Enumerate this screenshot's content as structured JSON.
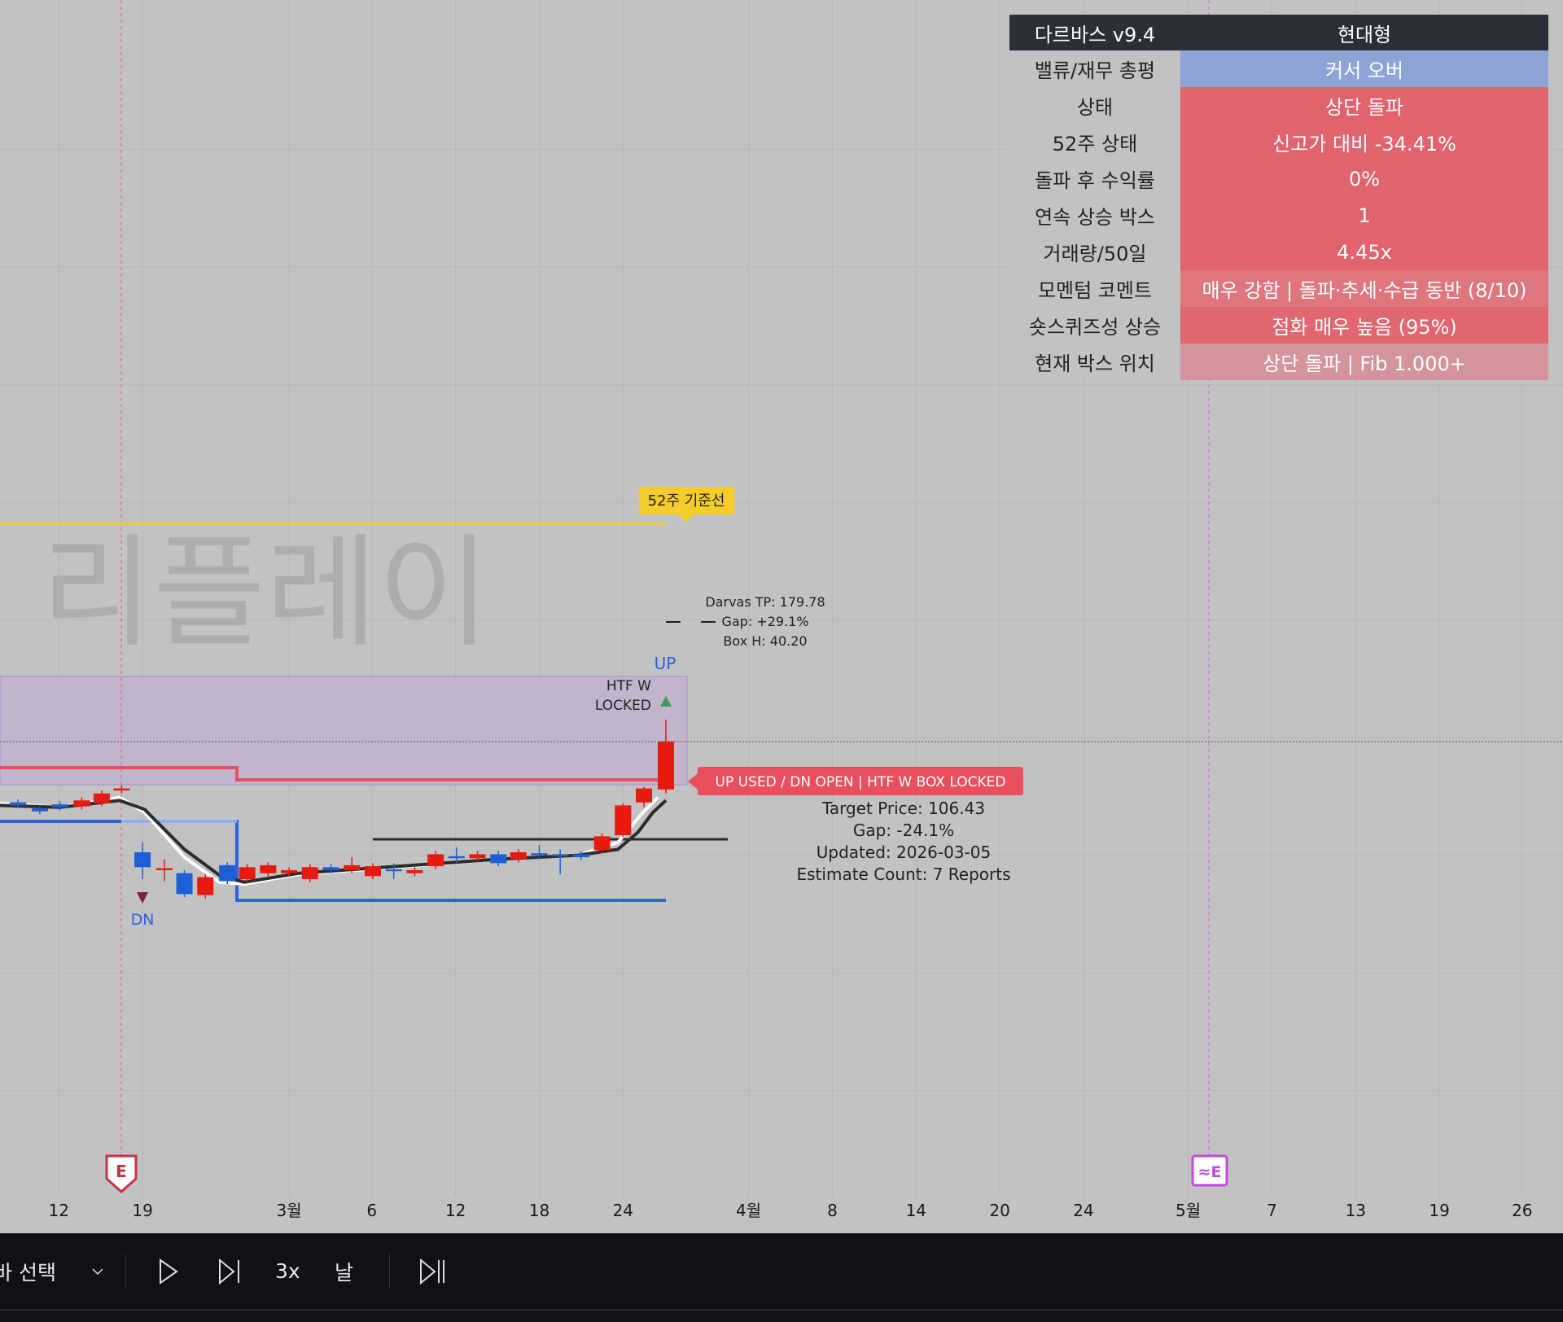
{
  "panel": {
    "title": "다르바스 v9.4",
    "style": "현대형",
    "rows": [
      {
        "label": "밸류/재무 총평",
        "value": "커서 오버",
        "color": "#8ea3d6"
      },
      {
        "label": "상태",
        "value": "상단 돌파",
        "color": "#e0636e"
      },
      {
        "label": "52주 상태",
        "value": "신고가 대비 -34.41%",
        "color": "#e0636e"
      },
      {
        "label": "돌파 후 수익률",
        "value": "0%",
        "color": "#e0636e"
      },
      {
        "label": "연속 상승 박스",
        "value": "1",
        "color": "#e0636e"
      },
      {
        "label": "거래량/50일",
        "value": "4.45x",
        "color": "#e0636e"
      },
      {
        "label": "모멘텀 코멘트",
        "value": "매우 강함 | 돌파·추세·수급 동반 (8/10)",
        "color": "#df767e"
      },
      {
        "label": "숏스퀴즈성 상승",
        "value": "점화 매우 높음 (95%)",
        "color": "#e0666f"
      },
      {
        "label": "현재 박스 위치",
        "value": "상단 돌파 | Fib 1.000+",
        "color": "#d3959b"
      }
    ]
  },
  "chart": {
    "watermark": "리플레이",
    "week52_label": "52주 기준선",
    "darvas_tp": "Darvas TP: 179.78",
    "darvas_gap": "Gap: +29.1%",
    "box_h": "Box H: 40.20",
    "up_label": "UP",
    "htf_line1": "HTF W",
    "htf_line2": "LOCKED",
    "dn_label": "DN",
    "status_label": "UP USED / DN OPEN | HTF W BOX LOCKED",
    "target_price": "Target Price: 106.43",
    "target_gap": "Gap: -24.1%",
    "updated": "Updated: 2026-03-05",
    "estimate_count": "Estimate Count: 7 Reports",
    "earnings_marker": "E",
    "earnings_future_marker": "≈E",
    "colors": {
      "up": "#e8190f",
      "down": "#1f5fd6",
      "week52": "#f5cd2a",
      "label_red": "#e8505f"
    }
  },
  "x_axis": {
    "ticks": [
      "12",
      "19",
      "3월",
      "6",
      "12",
      "18",
      "24",
      "4월",
      "8",
      "14",
      "20",
      "24",
      "5월",
      "7",
      "13",
      "19",
      "26"
    ]
  },
  "toolbar": {
    "bar_select": "바 선택",
    "speed": "3x",
    "interval": "날"
  }
}
